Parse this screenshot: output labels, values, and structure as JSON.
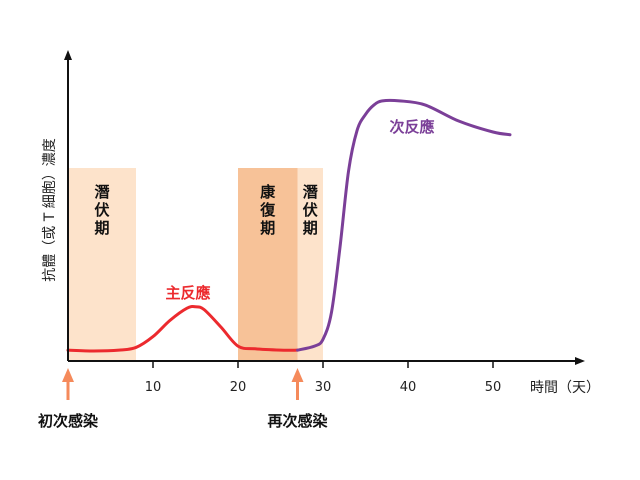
{
  "chart_data": {
    "type": "line",
    "title": "",
    "xlabel": "時間（天）",
    "ylabel": "抗體（或 T 細胞）濃度",
    "xlim": [
      -1,
      56
    ],
    "ylim": [
      0,
      100
    ],
    "x_ticks": [
      "10",
      "20",
      "30",
      "40",
      "50"
    ],
    "grid": false,
    "phases": [
      {
        "label": "潛伏期",
        "x_start": 0,
        "x_end": 8,
        "color": "#fde3cb"
      },
      {
        "label": "康復期",
        "x_start": 20,
        "x_end": 27,
        "color": "#f7c298"
      },
      {
        "label": "潛伏期",
        "x_start": 27,
        "x_end": 30,
        "color": "#fde3cb"
      }
    ],
    "series": [
      {
        "name": "主反應",
        "color": "#ec2a2e",
        "x": [
          0,
          3,
          6,
          8,
          10,
          12,
          14,
          15,
          16,
          18,
          20,
          22,
          25,
          27
        ],
        "y": [
          4,
          3.7,
          4,
          5,
          9,
          15,
          19.5,
          20,
          19,
          12.5,
          5.5,
          4.5,
          4,
          4
        ]
      },
      {
        "name": "次反應",
        "color": "#7b3f98",
        "x": [
          27,
          29,
          30,
          31,
          32,
          33,
          34,
          35,
          36,
          37,
          39,
          42,
          46,
          50,
          52
        ],
        "y": [
          4,
          5.5,
          8,
          18,
          42,
          70,
          85,
          91,
          94.5,
          96,
          96,
          94.5,
          88.5,
          84.5,
          83.5
        ]
      }
    ],
    "events": [
      {
        "label": "初次感染",
        "x": 0
      },
      {
        "label": "再次感染",
        "x": 27
      }
    ]
  }
}
